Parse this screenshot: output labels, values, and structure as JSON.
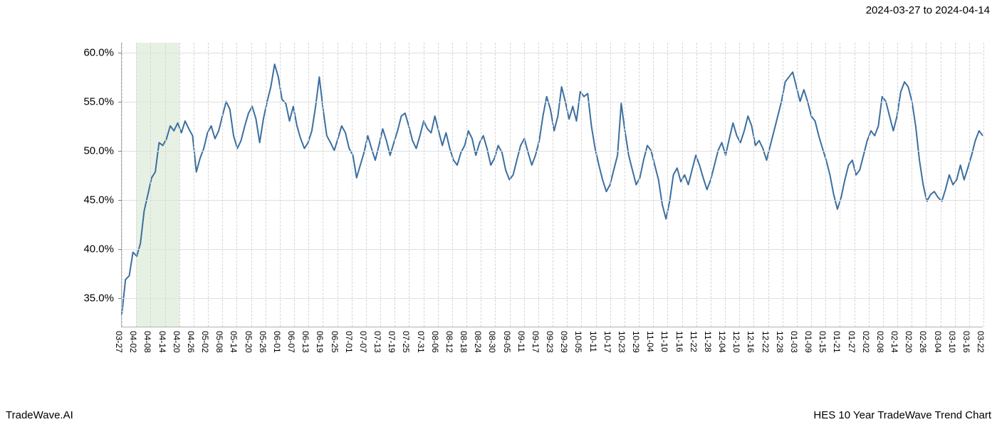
{
  "header": {
    "date_range": "2024-03-27 to 2024-04-14"
  },
  "footer": {
    "brand": "TradeWave.AI",
    "title": "HES 10 Year TradeWave Trend Chart"
  },
  "chart": {
    "type": "line",
    "background_color": "#ffffff",
    "grid_color": "#e0e0e0",
    "vgrid_color": "#d5d5d5",
    "axis_color": "#b0b0b0",
    "line_color": "#3b6fa0",
    "line_width": 2,
    "highlight_band_color": "#d7e8d0",
    "highlight_band_opacity": 0.6,
    "ylim": [
      32,
      61
    ],
    "yticks": [
      35,
      40,
      45,
      50,
      55,
      60
    ],
    "ytick_labels": [
      "35.0%",
      "40.0%",
      "45.0%",
      "50.0%",
      "55.0%",
      "60.0%"
    ],
    "ytick_fontsize": 15,
    "xtick_fontsize": 12,
    "xticks": [
      "03-27",
      "04-02",
      "04-08",
      "04-14",
      "04-20",
      "04-26",
      "05-02",
      "05-08",
      "05-14",
      "05-20",
      "05-26",
      "06-01",
      "06-07",
      "06-13",
      "06-19",
      "06-25",
      "07-01",
      "07-07",
      "07-13",
      "07-19",
      "07-25",
      "07-31",
      "08-06",
      "08-12",
      "08-18",
      "08-24",
      "08-30",
      "09-05",
      "09-11",
      "09-17",
      "09-23",
      "09-29",
      "10-05",
      "10-11",
      "10-17",
      "10-23",
      "10-29",
      "11-04",
      "11-10",
      "11-16",
      "11-22",
      "11-28",
      "12-04",
      "12-10",
      "12-16",
      "12-22",
      "12-28",
      "01-03",
      "01-09",
      "01-15",
      "01-21",
      "01-27",
      "02-02",
      "02-08",
      "02-14",
      "02-20",
      "02-26",
      "03-04",
      "03-10",
      "03-16",
      "03-22"
    ],
    "highlight_start_idx": 1,
    "highlight_end_idx": 4,
    "series": [
      33.2,
      36.8,
      37.2,
      39.6,
      39.2,
      40.5,
      43.8,
      45.5,
      47.2,
      47.8,
      50.8,
      50.5,
      51.2,
      52.5,
      52.0,
      52.8,
      51.8,
      53.0,
      52.2,
      51.5,
      47.8,
      49.2,
      50.2,
      51.8,
      52.5,
      51.2,
      52.0,
      53.5,
      55.0,
      54.2,
      51.5,
      50.2,
      51.0,
      52.5,
      53.8,
      54.5,
      53.2,
      50.8,
      53.2,
      55.0,
      56.5,
      58.8,
      57.5,
      55.2,
      54.8,
      53.0,
      54.5,
      52.5,
      51.2,
      50.2,
      50.8,
      52.0,
      54.5,
      57.5,
      54.2,
      51.5,
      50.8,
      50.0,
      51.2,
      52.5,
      51.8,
      50.2,
      49.5,
      47.2,
      48.5,
      49.8,
      51.5,
      50.2,
      49.0,
      50.5,
      52.2,
      51.0,
      49.5,
      50.8,
      52.0,
      53.5,
      53.8,
      52.5,
      51.0,
      50.2,
      51.5,
      53.0,
      52.2,
      51.8,
      53.5,
      52.0,
      50.5,
      51.8,
      50.2,
      49.0,
      48.5,
      49.8,
      50.5,
      52.0,
      51.2,
      49.5,
      50.8,
      51.5,
      50.2,
      48.5,
      49.2,
      50.5,
      49.8,
      48.0,
      47.0,
      47.5,
      49.0,
      50.5,
      51.2,
      49.8,
      48.5,
      49.5,
      51.0,
      53.5,
      55.5,
      54.2,
      52.0,
      53.5,
      56.5,
      55.0,
      53.2,
      54.5,
      53.0,
      56.0,
      55.5,
      55.8,
      52.5,
      50.2,
      48.5,
      47.0,
      45.8,
      46.5,
      48.0,
      49.5,
      54.8,
      52.0,
      49.5,
      48.0,
      46.5,
      47.2,
      49.0,
      50.5,
      50.0,
      48.5,
      47.0,
      44.5,
      43.0,
      44.8,
      47.5,
      48.2,
      46.8,
      47.5,
      46.5,
      48.0,
      49.5,
      48.5,
      47.2,
      46.0,
      47.0,
      48.5,
      50.0,
      50.8,
      49.5,
      51.2,
      52.8,
      51.5,
      50.8,
      52.0,
      53.5,
      52.5,
      50.5,
      51.0,
      50.2,
      49.0,
      50.5,
      52.0,
      53.5,
      55.0,
      57.0,
      57.5,
      58.0,
      56.5,
      55.0,
      56.2,
      55.0,
      53.5,
      53.0,
      51.5,
      50.2,
      49.0,
      47.5,
      45.5,
      44.0,
      45.2,
      47.0,
      48.5,
      49.0,
      47.5,
      48.0,
      49.5,
      51.0,
      52.0,
      51.5,
      52.5,
      55.5,
      55.0,
      53.5,
      52.0,
      53.5,
      56.0,
      57.0,
      56.5,
      55.0,
      52.5,
      49.0,
      46.5,
      44.8,
      45.5,
      45.8,
      45.2,
      44.8,
      46.0,
      47.5,
      46.5,
      47.0,
      48.5,
      47.0,
      48.2,
      49.5,
      51.0,
      52.0,
      51.5
    ]
  }
}
